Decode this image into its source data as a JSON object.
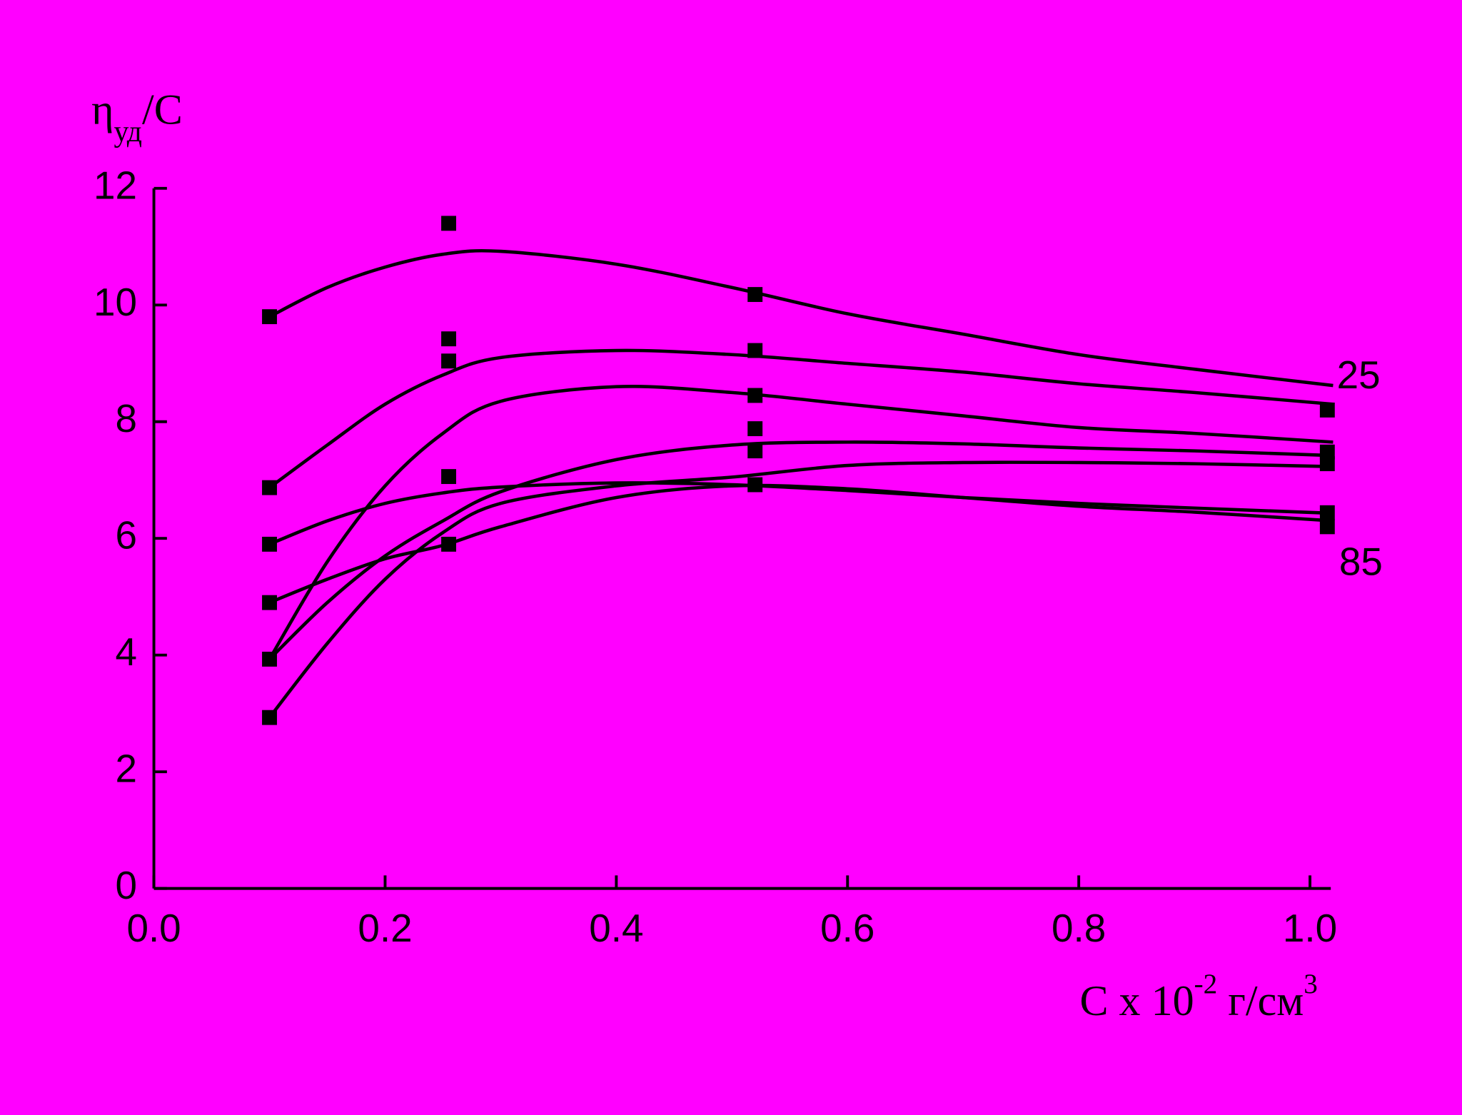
{
  "chart_data": {
    "type": "line",
    "ylabel": {
      "main": "η",
      "sub": "уд",
      "tail": "/C"
    },
    "xlabel": {
      "main": "C x 10",
      "sup1": "-2",
      "mid": " г/см",
      "sup2": "3"
    },
    "xlim": [
      0,
      1.018
    ],
    "ylim": [
      0,
      12
    ],
    "xticks": [
      {
        "value": 0,
        "label": "0.0"
      },
      0.2,
      0.4,
      0.6,
      0.8,
      {
        "value": 1,
        "label": "1.0"
      }
    ],
    "yticks": [
      0,
      2,
      4,
      6,
      8,
      10,
      12
    ],
    "color": "#000000",
    "x": [
      0.1,
      0.15,
      0.2,
      0.25,
      0.3,
      0.4,
      0.5,
      0.6,
      0.7,
      0.8,
      0.9,
      1.02
    ],
    "series": [
      {
        "values": [
          9.8,
          10.3,
          10.65,
          10.87,
          10.92,
          10.7,
          10.3,
          9.85,
          9.5,
          9.15,
          8.9,
          8.62
        ]
      },
      {
        "values": [
          6.87,
          7.6,
          8.3,
          8.8,
          9.1,
          9.22,
          9.15,
          9.0,
          8.85,
          8.65,
          8.5,
          8.3
        ]
      },
      {
        "values": [
          3.93,
          5.6,
          6.9,
          7.8,
          8.35,
          8.6,
          8.5,
          8.3,
          8.1,
          7.9,
          7.8,
          7.65
        ]
      },
      {
        "values": [
          3.93,
          4.9,
          5.7,
          6.3,
          6.8,
          7.35,
          7.6,
          7.65,
          7.62,
          7.55,
          7.5,
          7.42
        ]
      },
      {
        "values": [
          2.93,
          4.2,
          5.3,
          6.1,
          6.6,
          6.9,
          7.05,
          7.25,
          7.3,
          7.3,
          7.28,
          7.23
        ]
      },
      {
        "values": [
          5.9,
          6.3,
          6.6,
          6.78,
          6.88,
          6.95,
          6.92,
          6.82,
          6.7,
          6.6,
          6.52,
          6.43
        ]
      },
      {
        "values": [
          4.9,
          5.3,
          5.65,
          5.88,
          6.2,
          6.7,
          6.9,
          6.85,
          6.7,
          6.55,
          6.45,
          6.3
        ]
      }
    ],
    "points": {
      "x": [
        0.1,
        0.1,
        0.1,
        0.1,
        0.1,
        0.1,
        0.255,
        0.255,
        0.255,
        0.255,
        0.255,
        0.52,
        0.52,
        0.52,
        0.52,
        0.52,
        0.52,
        1.015,
        1.015,
        1.015,
        1.015,
        1.015
      ],
      "y": [
        9.8,
        6.87,
        5.9,
        4.9,
        3.93,
        2.93,
        11.4,
        9.42,
        9.04,
        7.06,
        5.9,
        10.18,
        9.22,
        8.45,
        7.88,
        7.5,
        6.92,
        8.2,
        7.48,
        7.28,
        6.44,
        6.2
      ]
    },
    "annotations": [
      {
        "text": "25",
        "x": 1.02,
        "y": 8.75
      },
      {
        "text": "85",
        "x": 1.022,
        "y": 5.55
      }
    ]
  }
}
